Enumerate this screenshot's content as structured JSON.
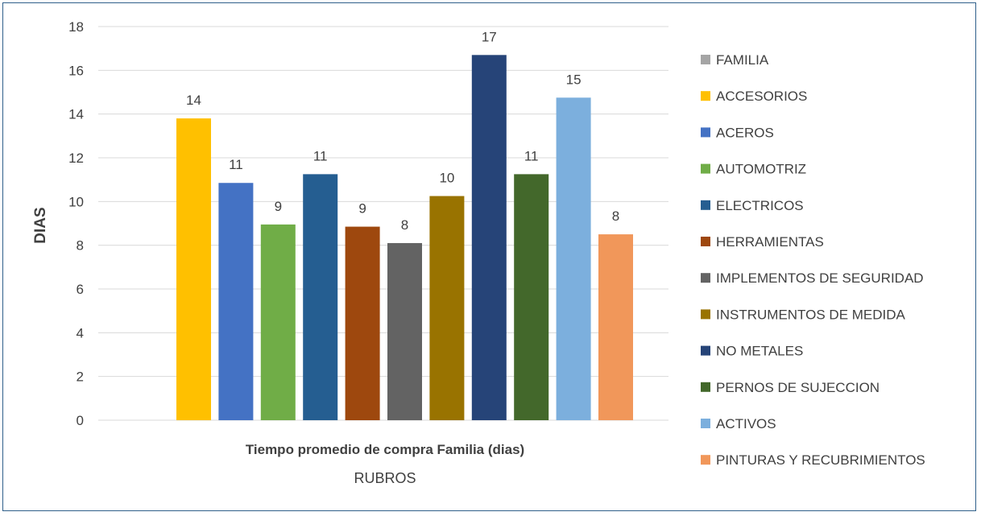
{
  "chart_data": {
    "type": "bar",
    "title": "",
    "category_label": "Tiempo promedio de compra Familia (dias)",
    "xlabel": "RUBROS",
    "ylabel": "DIAS",
    "ylim": [
      0,
      18
    ],
    "yticks": [
      0,
      2,
      4,
      6,
      8,
      10,
      12,
      14,
      16,
      18
    ],
    "grid": true,
    "legend_position": "right",
    "series": [
      {
        "name": "FAMILIA",
        "value": null,
        "label": "",
        "color": "#a5a5a5"
      },
      {
        "name": "ACCESORIOS",
        "value": 13.8,
        "label": "14",
        "color": "#ffc000"
      },
      {
        "name": "ACEROS",
        "value": 10.85,
        "label": "11",
        "color": "#4472c4"
      },
      {
        "name": "AUTOMOTRIZ",
        "value": 8.95,
        "label": "9",
        "color": "#70ad47"
      },
      {
        "name": "ELECTRICOS",
        "value": 11.25,
        "label": "11",
        "color": "#255e91"
      },
      {
        "name": "HERRAMIENTAS",
        "value": 8.85,
        "label": "9",
        "color": "#9e480e"
      },
      {
        "name": "IMPLEMENTOS DE SEGURIDAD",
        "value": 8.1,
        "label": "8",
        "color": "#636363"
      },
      {
        "name": "INSTRUMENTOS DE MEDIDA",
        "value": 10.25,
        "label": "10",
        "color": "#997300"
      },
      {
        "name": "NO METALES",
        "value": 16.7,
        "label": "17",
        "color": "#264478"
      },
      {
        "name": "PERNOS DE SUJECCION",
        "value": 11.25,
        "label": "11",
        "color": "#43682b"
      },
      {
        "name": "ACTIVOS",
        "value": 14.75,
        "label": "15",
        "color": "#7cafdd"
      },
      {
        "name": "PINTURAS Y RECUBRIMIENTOS",
        "value": 8.5,
        "label": "8",
        "color": "#f1975a"
      }
    ]
  }
}
